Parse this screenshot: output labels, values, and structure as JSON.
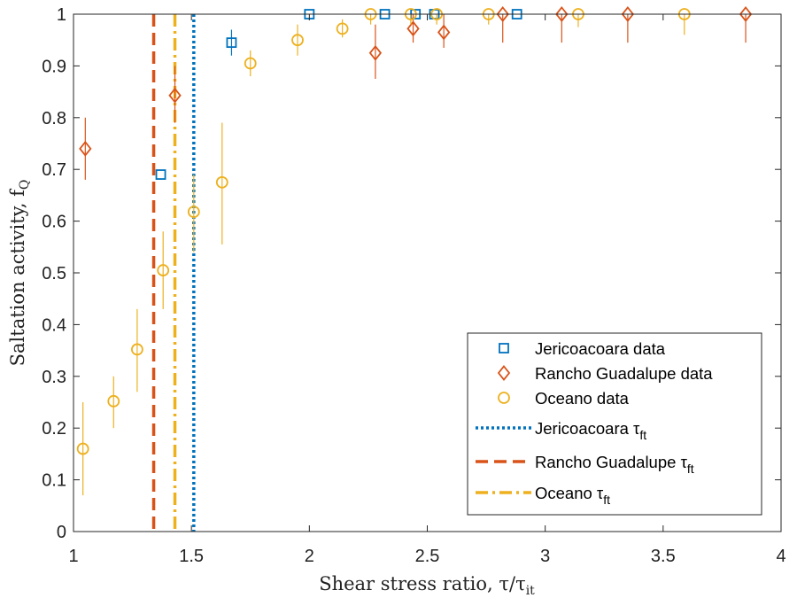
{
  "chart_data": {
    "type": "scatter",
    "xlabel": "Shear stress ratio, τ/τ",
    "xlabel_sub": "it",
    "ylabel": "Saltation activity, f",
    "ylabel_sub": "Q",
    "xlim": [
      1,
      4
    ],
    "ylim": [
      0,
      1
    ],
    "x_ticks": [
      1,
      1.5,
      2,
      2.5,
      3,
      3.5,
      4
    ],
    "x_tick_labels": [
      "1",
      "1.5",
      "2",
      "2.5",
      "3",
      "3.5",
      "4"
    ],
    "y_ticks": [
      0,
      0.1,
      0.2,
      0.3,
      0.4,
      0.5,
      0.6,
      0.7,
      0.8,
      0.9,
      1
    ],
    "y_tick_labels": [
      "0",
      "0.1",
      "0.2",
      "0.3",
      "0.4",
      "0.5",
      "0.6",
      "0.7",
      "0.8",
      "0.9",
      "1"
    ],
    "grid": false,
    "legend_position": "bottom-right",
    "series": [
      {
        "name": "Jericoacoara data",
        "marker": "square",
        "color": "#0072BD",
        "points": [
          {
            "x": 1.37,
            "y": 0.69,
            "lo": 0.69,
            "hi": 0.69
          },
          {
            "x": 1.67,
            "y": 0.945,
            "lo": 0.92,
            "hi": 0.97
          },
          {
            "x": 2.0,
            "y": 1.0,
            "lo": 1.0,
            "hi": 1.0
          },
          {
            "x": 2.32,
            "y": 1.0,
            "lo": 1.0,
            "hi": 1.0
          },
          {
            "x": 2.45,
            "y": 1.0,
            "lo": 1.0,
            "hi": 1.0
          },
          {
            "x": 2.53,
            "y": 1.0,
            "lo": 1.0,
            "hi": 1.0
          },
          {
            "x": 2.88,
            "y": 1.0,
            "lo": 1.0,
            "hi": 1.0
          }
        ]
      },
      {
        "name": "Rancho Guadalupe data",
        "marker": "diamond",
        "color": "#D95319",
        "points": [
          {
            "x": 1.05,
            "y": 0.74,
            "lo": 0.68,
            "hi": 0.8
          },
          {
            "x": 1.43,
            "y": 0.843,
            "lo": 0.79,
            "hi": 0.9
          },
          {
            "x": 2.28,
            "y": 0.925,
            "lo": 0.875,
            "hi": 0.98
          },
          {
            "x": 2.44,
            "y": 0.972,
            "lo": 0.945,
            "hi": 1.0
          },
          {
            "x": 2.57,
            "y": 0.965,
            "lo": 0.935,
            "hi": 1.0
          },
          {
            "x": 2.82,
            "y": 1.0,
            "lo": 0.945,
            "hi": 1.0
          },
          {
            "x": 3.07,
            "y": 1.0,
            "lo": 0.945,
            "hi": 1.0
          },
          {
            "x": 3.35,
            "y": 1.0,
            "lo": 0.945,
            "hi": 1.0
          },
          {
            "x": 3.85,
            "y": 1.0,
            "lo": 0.945,
            "hi": 1.0
          }
        ]
      },
      {
        "name": "Oceano data",
        "marker": "circle",
        "color": "#EDB120",
        "points": [
          {
            "x": 1.04,
            "y": 0.16,
            "lo": 0.07,
            "hi": 0.25
          },
          {
            "x": 1.17,
            "y": 0.252,
            "lo": 0.2,
            "hi": 0.3
          },
          {
            "x": 1.27,
            "y": 0.352,
            "lo": 0.27,
            "hi": 0.43
          },
          {
            "x": 1.38,
            "y": 0.505,
            "lo": 0.43,
            "hi": 0.58
          },
          {
            "x": 1.51,
            "y": 0.618,
            "lo": 0.54,
            "hi": 0.69
          },
          {
            "x": 1.63,
            "y": 0.675,
            "lo": 0.555,
            "hi": 0.79
          },
          {
            "x": 1.75,
            "y": 0.905,
            "lo": 0.88,
            "hi": 0.93
          },
          {
            "x": 1.95,
            "y": 0.95,
            "lo": 0.92,
            "hi": 0.98
          },
          {
            "x": 2.14,
            "y": 0.972,
            "lo": 0.955,
            "hi": 0.99
          },
          {
            "x": 2.26,
            "y": 1.0,
            "lo": 0.98,
            "hi": 1.0
          },
          {
            "x": 2.43,
            "y": 1.0,
            "lo": 0.98,
            "hi": 1.0
          },
          {
            "x": 2.54,
            "y": 1.0,
            "lo": 0.98,
            "hi": 1.0
          },
          {
            "x": 2.76,
            "y": 1.0,
            "lo": 0.98,
            "hi": 1.0
          },
          {
            "x": 3.14,
            "y": 1.0,
            "lo": 0.975,
            "hi": 1.0
          },
          {
            "x": 3.59,
            "y": 1.0,
            "lo": 0.96,
            "hi": 1.0
          }
        ]
      }
    ],
    "thresholds": [
      {
        "name": "Jericoacoara τ",
        "name_sub": "ft",
        "x": 1.51,
        "style": "dotted",
        "color": "#0072BD"
      },
      {
        "name": "Rancho Guadalupe τ",
        "name_sub": "ft",
        "x": 1.34,
        "style": "dashed",
        "color": "#D95319"
      },
      {
        "name": "Oceano τ",
        "name_sub": "ft",
        "x": 1.43,
        "style": "dashdot",
        "color": "#EDB120"
      }
    ]
  }
}
